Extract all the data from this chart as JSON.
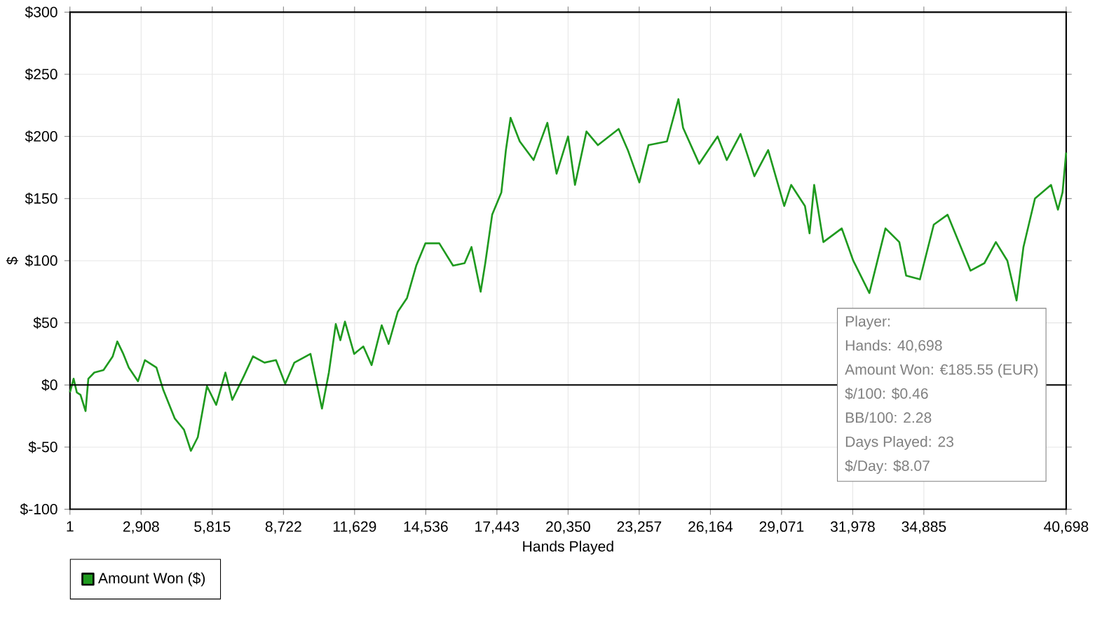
{
  "chart_data": {
    "type": "line",
    "xlabel": "Hands Played",
    "ylabel": "$",
    "xlim": [
      1,
      40698
    ],
    "ylim": [
      -100,
      300
    ],
    "xticks": [
      {
        "value": 1,
        "label": "1"
      },
      {
        "value": 2908,
        "label": "2,908"
      },
      {
        "value": 5815,
        "label": "5,815"
      },
      {
        "value": 8722,
        "label": "8,722"
      },
      {
        "value": 11629,
        "label": "11,629"
      },
      {
        "value": 14536,
        "label": "14,536"
      },
      {
        "value": 17443,
        "label": "17,443"
      },
      {
        "value": 20350,
        "label": "20,350"
      },
      {
        "value": 23257,
        "label": "23,257"
      },
      {
        "value": 26164,
        "label": "26,164"
      },
      {
        "value": 29071,
        "label": "29,071"
      },
      {
        "value": 31978,
        "label": "31,978"
      },
      {
        "value": 34885,
        "label": "34,885"
      },
      {
        "value": 40698,
        "label": "40,698"
      }
    ],
    "yticks": [
      {
        "value": -100,
        "label": "$-100"
      },
      {
        "value": -50,
        "label": "$-50"
      },
      {
        "value": 0,
        "label": "$0"
      },
      {
        "value": 50,
        "label": "$50"
      },
      {
        "value": 100,
        "label": "$100"
      },
      {
        "value": 150,
        "label": "$150"
      },
      {
        "value": 200,
        "label": "$200"
      },
      {
        "value": 250,
        "label": "$250"
      },
      {
        "value": 300,
        "label": "$300"
      }
    ],
    "grid": true,
    "legend": "bottom left",
    "marker": "none",
    "line_style": "solid",
    "ref_lines": [
      {
        "axis": "y",
        "value": 0,
        "color": "#000000"
      }
    ],
    "annotations": [
      "Player:",
      "Hands: 40,698",
      "Amount Won: €185.55 (EUR)",
      "$/100: $0.46",
      "BB/100: 2.28",
      "Days Played: 23",
      "$/Day: $8.07"
    ],
    "series": [
      {
        "name": "Amount Won ($)",
        "color": "#1f9a1f",
        "x": [
          1,
          150,
          282,
          432,
          639,
          752,
          996,
          1372,
          1748,
          1935,
          2180,
          2405,
          2781,
          3063,
          3533,
          3814,
          4284,
          4660,
          4942,
          5223,
          5599,
          5975,
          6351,
          6633,
          7102,
          7478,
          7948,
          8418,
          8794,
          9169,
          9827,
          10296,
          10578,
          10860,
          11047,
          11235,
          11611,
          11986,
          12324,
          12737,
          13019,
          13394,
          13770,
          14146,
          14521,
          15088,
          15652,
          16122,
          16404,
          16779,
          16967,
          17249,
          17625,
          17810,
          18000,
          18376,
          18940,
          19504,
          19880,
          20350,
          20632,
          21101,
          21571,
          22416,
          22792,
          23262,
          23638,
          24390,
          24859,
          25047,
          25705,
          26457,
          26832,
          27396,
          27960,
          28524,
          29181,
          29463,
          30027,
          30215,
          30403,
          30779,
          31530,
          32000,
          32658,
          33316,
          33880,
          34161,
          34725,
          35289,
          35852,
          36792,
          37356,
          37825,
          38295,
          38671,
          38953,
          39423,
          40080,
          40362,
          40550,
          40698
        ],
        "values": [
          -6,
          5,
          -6,
          -8,
          -21,
          5,
          10,
          12,
          23,
          35,
          25,
          14,
          3,
          20,
          14,
          -4,
          -27,
          -36,
          -53,
          -42,
          -1,
          -16,
          10,
          -12,
          7,
          23,
          18,
          20,
          1,
          18,
          25,
          -19,
          10,
          49,
          36,
          51,
          25,
          31,
          16,
          48,
          33,
          59,
          70,
          96,
          114,
          114,
          96,
          98,
          111,
          75,
          98,
          137,
          155,
          189,
          215,
          196,
          181,
          211,
          170,
          200,
          161,
          204,
          193,
          206,
          189,
          163,
          193,
          196,
          230,
          207,
          178,
          200,
          181,
          202,
          168,
          189,
          144,
          161,
          144,
          122,
          161,
          115,
          126,
          100,
          74,
          126,
          115,
          88,
          85,
          129,
          137,
          92,
          98,
          115,
          100,
          68,
          111,
          150,
          161,
          141,
          155,
          187
        ]
      }
    ]
  }
}
